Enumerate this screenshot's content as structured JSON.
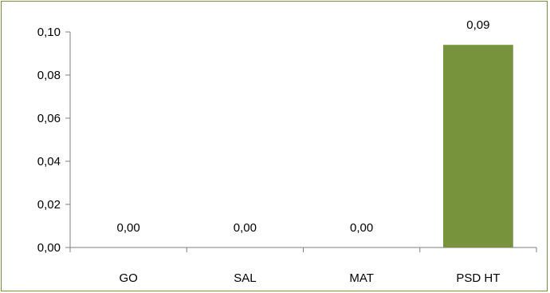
{
  "chart_data": {
    "type": "bar",
    "categories": [
      "GO",
      "SAL",
      "MAT",
      "PSD HT"
    ],
    "values": [
      0.0,
      0.0,
      0.0,
      0.094
    ],
    "data_labels": [
      "0,00",
      "0,00",
      "0,00",
      "0,09"
    ],
    "ylim": [
      0,
      0.1
    ],
    "yticks": [
      0.0,
      0.02,
      0.04,
      0.06,
      0.08,
      0.1
    ],
    "ytick_labels": [
      "0,00",
      "0,02",
      "0,04",
      "0,06",
      "0,08",
      "0,10"
    ],
    "grid": false,
    "legend": "none",
    "bar_color": "#77933c",
    "border_color": "#77933c"
  }
}
